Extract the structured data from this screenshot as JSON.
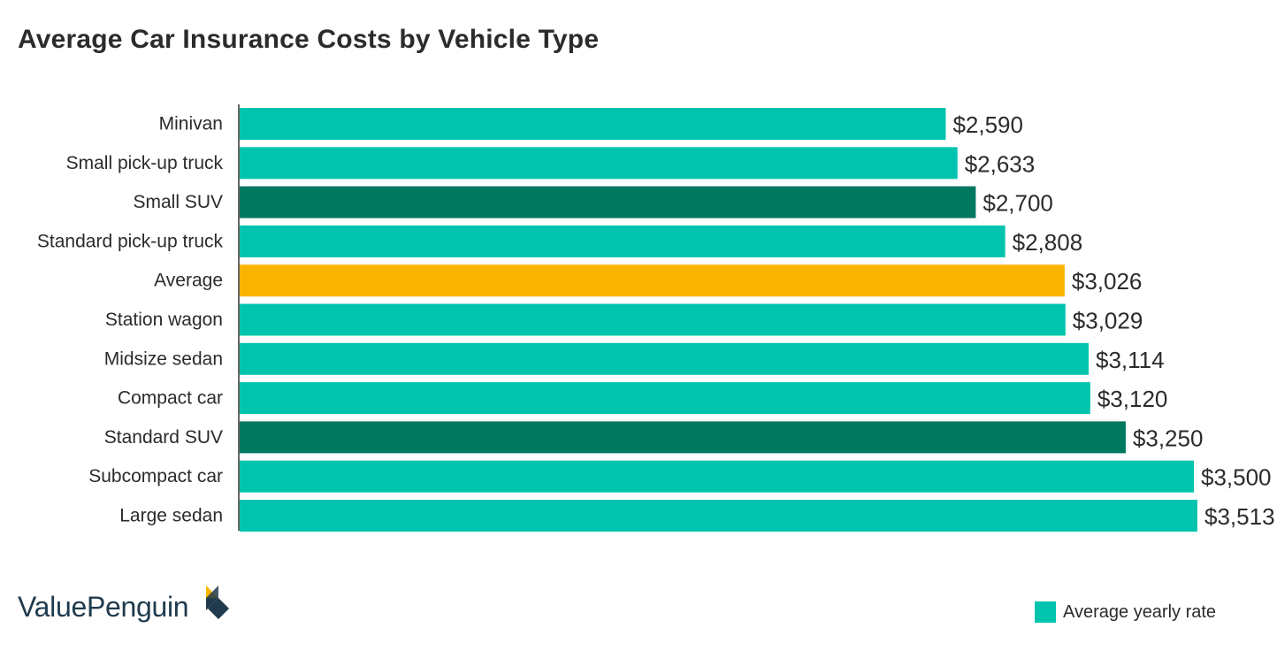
{
  "chart_data": {
    "type": "bar",
    "orientation": "horizontal",
    "title": "Average Car Insurance Costs by Vehicle Type",
    "xlabel": "",
    "ylabel": "",
    "xlim": [
      0,
      3550
    ],
    "grid": false,
    "categories": [
      "Minivan",
      "Small pick-up truck",
      "Small SUV",
      "Standard pick-up truck",
      "Average",
      "Station wagon",
      "Midsize sedan",
      "Compact car",
      "Standard SUV",
      "Subcompact car",
      "Large sedan"
    ],
    "values": [
      2590,
      2633,
      2700,
      2808,
      3026,
      3029,
      3114,
      3120,
      3250,
      3500,
      3513
    ],
    "value_labels": [
      "$2,590",
      "$2,633",
      "$2,700",
      "$2,808",
      "$3,026",
      "$3,029",
      "$3,114",
      "$3,120",
      "$3,250",
      "$3,500",
      "$3,513"
    ],
    "bar_colors": [
      "#00c4ad",
      "#00c4ad",
      "#00775f",
      "#00c4ad",
      "#f9b400",
      "#00c4ad",
      "#00c4ad",
      "#00c4ad",
      "#00775f",
      "#00c4ad",
      "#00c4ad"
    ],
    "legend": [
      {
        "label": "Average yearly rate",
        "color": "#00c4ad"
      }
    ],
    "legend_position": "bottom-right"
  },
  "brand": {
    "name": "ValuePenguin",
    "logo_icon": "valuepenguin-logo-icon"
  }
}
